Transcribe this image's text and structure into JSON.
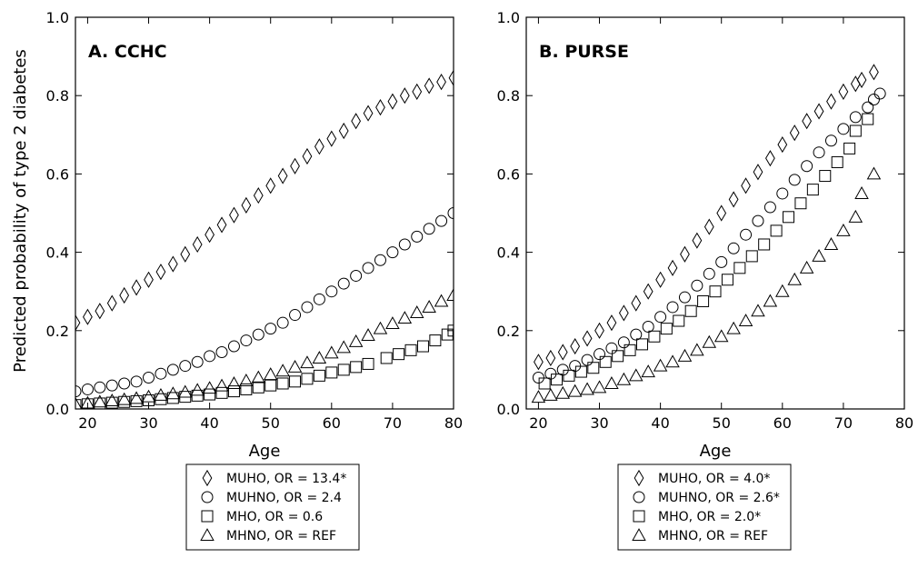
{
  "ylabel": "Predicted probability of type 2 diabetes",
  "chart_data": [
    {
      "type": "scatter",
      "title": "A. CCHC",
      "xlabel": "Age",
      "ylabel": "Predicted probability of type 2 diabetes",
      "xlim": [
        18,
        80
      ],
      "ylim": [
        0,
        1
      ],
      "xticks": [
        "20",
        "30",
        "40",
        "50",
        "60",
        "70",
        "80"
      ],
      "yticks": [
        "0.0",
        "0.2",
        "0.4",
        "0.6",
        "0.8",
        "1.0"
      ],
      "grid": false,
      "legend_position": "below",
      "series": [
        {
          "name": "MUHO, OR = 13.4*",
          "marker": "diamond",
          "x": [
            18,
            20,
            22,
            24,
            26,
            28,
            30,
            32,
            34,
            36,
            38,
            40,
            42,
            44,
            46,
            48,
            50,
            52,
            54,
            56,
            58,
            60,
            62,
            64,
            66,
            68,
            70,
            72,
            74,
            76,
            78,
            80
          ],
          "y": [
            0.22,
            0.235,
            0.25,
            0.27,
            0.29,
            0.31,
            0.33,
            0.35,
            0.37,
            0.395,
            0.42,
            0.445,
            0.47,
            0.495,
            0.52,
            0.545,
            0.57,
            0.595,
            0.62,
            0.645,
            0.67,
            0.69,
            0.71,
            0.735,
            0.755,
            0.77,
            0.785,
            0.8,
            0.81,
            0.825,
            0.835,
            0.845
          ]
        },
        {
          "name": "MUHNO, OR = 2.4",
          "marker": "circle",
          "x": [
            18,
            20,
            22,
            24,
            26,
            28,
            30,
            32,
            34,
            36,
            38,
            40,
            42,
            44,
            46,
            48,
            50,
            52,
            54,
            56,
            58,
            60,
            62,
            64,
            66,
            68,
            70,
            72,
            74,
            76,
            78,
            80
          ],
          "y": [
            0.045,
            0.05,
            0.055,
            0.06,
            0.065,
            0.07,
            0.08,
            0.09,
            0.1,
            0.11,
            0.12,
            0.135,
            0.145,
            0.16,
            0.175,
            0.19,
            0.205,
            0.22,
            0.24,
            0.26,
            0.28,
            0.3,
            0.32,
            0.34,
            0.36,
            0.38,
            0.4,
            0.42,
            0.44,
            0.46,
            0.48,
            0.5
          ]
        },
        {
          "name": "MHO, OR = 0.6",
          "marker": "square",
          "x": [
            18,
            20,
            22,
            24,
            26,
            28,
            30,
            32,
            34,
            36,
            38,
            40,
            42,
            44,
            46,
            48,
            50,
            52,
            54,
            56,
            58,
            60,
            62,
            64,
            66,
            69,
            71,
            73,
            75,
            77,
            79,
            80
          ],
          "y": [
            0.01,
            0.012,
            0.014,
            0.016,
            0.018,
            0.02,
            0.022,
            0.025,
            0.028,
            0.031,
            0.034,
            0.037,
            0.041,
            0.045,
            0.05,
            0.055,
            0.06,
            0.065,
            0.07,
            0.077,
            0.085,
            0.093,
            0.1,
            0.107,
            0.115,
            0.13,
            0.14,
            0.15,
            0.16,
            0.175,
            0.19,
            0.2
          ]
        },
        {
          "name": "MHNO, OR = REF",
          "marker": "triangle",
          "x": [
            18,
            20,
            22,
            24,
            26,
            28,
            30,
            32,
            34,
            36,
            38,
            40,
            42,
            44,
            46,
            48,
            50,
            52,
            54,
            56,
            58,
            60,
            62,
            64,
            66,
            68,
            70,
            72,
            74,
            76,
            78,
            80
          ],
          "y": [
            0.012,
            0.015,
            0.018,
            0.021,
            0.024,
            0.027,
            0.031,
            0.035,
            0.039,
            0.043,
            0.048,
            0.053,
            0.059,
            0.065,
            0.072,
            0.08,
            0.088,
            0.097,
            0.107,
            0.118,
            0.13,
            0.143,
            0.157,
            0.172,
            0.188,
            0.205,
            0.218,
            0.232,
            0.246,
            0.26,
            0.275,
            0.29
          ]
        }
      ]
    },
    {
      "type": "scatter",
      "title": "B. PURSE",
      "xlabel": "Age",
      "ylabel": "",
      "xlim": [
        18,
        80
      ],
      "ylim": [
        0,
        1
      ],
      "xticks": [
        "20",
        "30",
        "40",
        "50",
        "60",
        "70",
        "80"
      ],
      "yticks": [
        "0.0",
        "0.2",
        "0.4",
        "0.6",
        "0.8",
        "1.0"
      ],
      "grid": false,
      "legend_position": "below",
      "series": [
        {
          "name": "MUHO, OR = 4.0*",
          "marker": "diamond",
          "x": [
            20,
            22,
            24,
            26,
            28,
            30,
            32,
            34,
            36,
            38,
            40,
            42,
            44,
            46,
            48,
            50,
            52,
            54,
            56,
            58,
            60,
            62,
            64,
            66,
            68,
            70,
            72,
            73,
            75
          ],
          "y": [
            0.12,
            0.13,
            0.145,
            0.16,
            0.18,
            0.2,
            0.22,
            0.245,
            0.27,
            0.3,
            0.33,
            0.36,
            0.395,
            0.43,
            0.465,
            0.5,
            0.535,
            0.57,
            0.605,
            0.64,
            0.675,
            0.705,
            0.735,
            0.76,
            0.785,
            0.81,
            0.83,
            0.84,
            0.86
          ]
        },
        {
          "name": "MUHNO, OR = 2.6*",
          "marker": "circle",
          "x": [
            20,
            22,
            24,
            26,
            28,
            30,
            32,
            34,
            36,
            38,
            40,
            42,
            44,
            46,
            48,
            50,
            52,
            54,
            56,
            58,
            60,
            62,
            64,
            66,
            68,
            70,
            72,
            74,
            75,
            76
          ],
          "y": [
            0.08,
            0.09,
            0.1,
            0.11,
            0.125,
            0.14,
            0.155,
            0.17,
            0.19,
            0.21,
            0.235,
            0.26,
            0.285,
            0.315,
            0.345,
            0.375,
            0.41,
            0.445,
            0.48,
            0.515,
            0.55,
            0.585,
            0.62,
            0.655,
            0.685,
            0.715,
            0.745,
            0.77,
            0.79,
            0.805
          ]
        },
        {
          "name": "MHO, OR = 2.0*",
          "marker": "square",
          "x": [
            21,
            23,
            25,
            27,
            29,
            31,
            33,
            35,
            37,
            39,
            41,
            43,
            45,
            47,
            49,
            51,
            53,
            55,
            57,
            59,
            61,
            63,
            65,
            67,
            69,
            71,
            72,
            74
          ],
          "y": [
            0.065,
            0.075,
            0.085,
            0.095,
            0.105,
            0.12,
            0.135,
            0.15,
            0.165,
            0.185,
            0.205,
            0.225,
            0.25,
            0.275,
            0.3,
            0.33,
            0.36,
            0.39,
            0.42,
            0.455,
            0.49,
            0.525,
            0.56,
            0.595,
            0.63,
            0.665,
            0.71,
            0.74
          ]
        },
        {
          "name": "MHNO, OR = REF",
          "marker": "triangle",
          "x": [
            20,
            22,
            24,
            26,
            28,
            30,
            32,
            34,
            36,
            38,
            40,
            42,
            44,
            46,
            48,
            50,
            52,
            54,
            56,
            58,
            60,
            62,
            64,
            66,
            68,
            70,
            72,
            73,
            75
          ],
          "y": [
            0.03,
            0.035,
            0.04,
            0.045,
            0.05,
            0.055,
            0.065,
            0.075,
            0.085,
            0.095,
            0.11,
            0.12,
            0.135,
            0.15,
            0.17,
            0.185,
            0.205,
            0.225,
            0.25,
            0.275,
            0.3,
            0.33,
            0.36,
            0.39,
            0.42,
            0.455,
            0.49,
            0.55,
            0.6
          ]
        }
      ]
    }
  ]
}
